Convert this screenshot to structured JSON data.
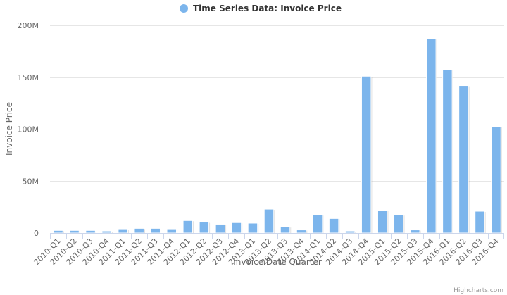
{
  "chart_data": {
    "type": "bar",
    "legend": {
      "label": "Time Series Data: Invoice Price",
      "color": "#7cb5ec",
      "placement": "top-center"
    },
    "xlabel": "Invoice Date Quarter",
    "ylabel": "Invoice Price",
    "ylim": [
      0,
      200000000
    ],
    "yticks": [
      {
        "value": 0,
        "label": "0"
      },
      {
        "value": 50000000,
        "label": "50M"
      },
      {
        "value": 100000000,
        "label": "100M"
      },
      {
        "value": 150000000,
        "label": "150M"
      },
      {
        "value": 200000000,
        "label": "200M"
      }
    ],
    "grid": true,
    "categories": [
      "2010-Q1",
      "2010-Q2",
      "2010-Q3",
      "2010-Q4",
      "2011-Q1",
      "2011-Q2",
      "2011-Q3",
      "2011-Q4",
      "2012-Q1",
      "2012-Q2",
      "2012-Q3",
      "2012-Q4",
      "2013-Q1",
      "2013-Q2",
      "2013-Q3",
      "2013-Q4",
      "2014-Q1",
      "2014-Q2",
      "2014-Q3",
      "2014-Q4",
      "2015-Q1",
      "2015-Q2",
      "2015-Q3",
      "2015-Q4",
      "2016-Q1",
      "2016-Q2",
      "2016-Q3",
      "2016-Q4"
    ],
    "series": [
      {
        "name": "Time Series Data: Invoice Price",
        "color": "#7cb5ec",
        "values": [
          2500000,
          2500000,
          2500000,
          2000000,
          4000000,
          4500000,
          4500000,
          4000000,
          12000000,
          10500000,
          8500000,
          10000000,
          9500000,
          23000000,
          6000000,
          3000000,
          17500000,
          14000000,
          2000000,
          151000000,
          22000000,
          17500000,
          3000000,
          187000000,
          157500000,
          142000000,
          21000000,
          102500000
        ]
      }
    ]
  },
  "credits": "Highcharts.com"
}
